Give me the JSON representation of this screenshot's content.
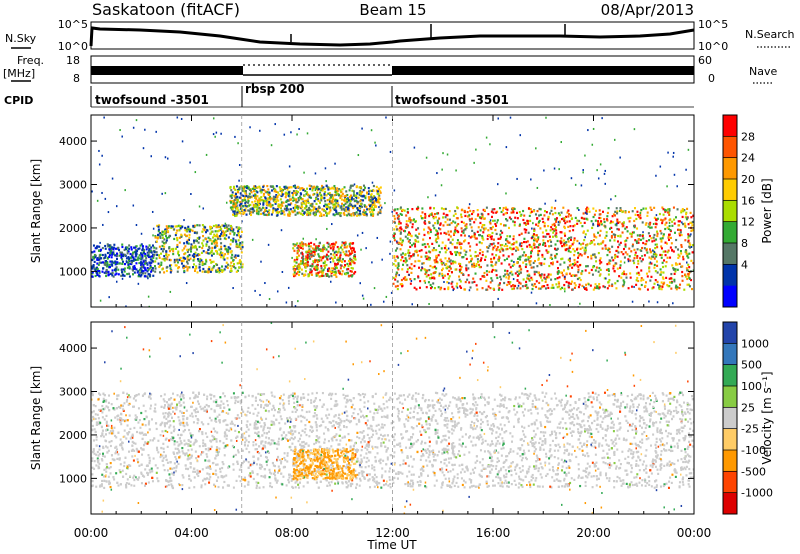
{
  "header": {
    "station": "Saskatoon (fitACF)",
    "beam": "Beam 15",
    "date": "08/Apr/2013"
  },
  "summary_panels": {
    "nsky_label": "N.Sky",
    "nsearch_label": "N.Search",
    "nsky_ticks": [
      "10^5",
      "10^0"
    ],
    "freq_label_line1": "Freq.",
    "freq_label_line2": "[MHz]",
    "freq_ticks": [
      "18",
      "8"
    ],
    "nave_label": "Nave",
    "nave_ticks": [
      "60",
      "0"
    ],
    "cpid_label": "CPID",
    "cpid_segments": [
      {
        "label": "twofsound -3501",
        "start": 0,
        "end": 6
      },
      {
        "label": "rbsp 200",
        "start": 6,
        "end": 12
      },
      {
        "label": "twofsound -3501",
        "start": 12,
        "end": 24
      }
    ]
  },
  "chart_data": [
    {
      "type": "heatmap",
      "parameter": "Power",
      "ylabel": "Slant Range [km]",
      "colorbar_label": "Power [dB]",
      "ylim": [
        180,
        4600
      ],
      "xlim": [
        "00:00",
        "24:00"
      ],
      "y_ticks": [
        1000,
        2000,
        3000,
        4000
      ],
      "colorbar_ticks": [
        "28",
        "24",
        "20",
        "16",
        "12",
        "8",
        "4"
      ],
      "colorbar_colors": [
        "#ff0000",
        "#ff5500",
        "#ff9900",
        "#ffcc00",
        "#aadd00",
        "#33aa33",
        "#557766",
        "#0033aa",
        "#0000ff"
      ],
      "echo_regions": [
        {
          "t_start": 0.0,
          "t_end": 2.5,
          "range_low": 900,
          "range_high": 1650,
          "level": "low"
        },
        {
          "t_start": 2.5,
          "t_end": 6.0,
          "range_low": 1000,
          "range_high": 2100,
          "level": "medium"
        },
        {
          "t_start": 5.5,
          "t_end": 11.5,
          "range_low": 2300,
          "range_high": 3000,
          "level": "medium"
        },
        {
          "t_start": 8.0,
          "t_end": 10.5,
          "range_low": 900,
          "range_high": 1700,
          "level": "high"
        },
        {
          "t_start": 12.0,
          "t_end": 24.0,
          "range_low": 600,
          "range_high": 2500,
          "level": "high"
        }
      ]
    },
    {
      "type": "heatmap",
      "parameter": "Velocity",
      "ylabel": "Slant Range [km]",
      "colorbar_label": "Velocity [m s⁻¹]",
      "ylim": [
        180,
        4600
      ],
      "xlim": [
        "00:00",
        "24:00"
      ],
      "y_ticks": [
        1000,
        2000,
        3000,
        4000
      ],
      "colorbar_ticks": [
        "1000",
        "500",
        "100",
        "25",
        "-25",
        "-100",
        "-500",
        "-1000"
      ],
      "colorbar_colors": [
        "#2244aa",
        "#3377bb",
        "#33aa55",
        "#88cc44",
        "#cccccc",
        "#ffcc66",
        "#ff9900",
        "#ff4400",
        "#dd0000"
      ],
      "echo_regions": [
        {
          "t_start": 0.0,
          "t_end": 24.0,
          "range_low": 800,
          "range_high": 3000,
          "velocity": "near-zero (ground scatter)"
        },
        {
          "t_start": 8.0,
          "t_end": 10.5,
          "range_low": 1000,
          "range_high": 1700,
          "velocity": "-100 to -500"
        }
      ]
    }
  ],
  "x_axis": {
    "label": "Time UT",
    "ticks": [
      "00:00",
      "04:00",
      "08:00",
      "12:00",
      "16:00",
      "20:00",
      "00:00"
    ]
  },
  "colors": {
    "axis": "#000000",
    "background": "#ffffff"
  }
}
